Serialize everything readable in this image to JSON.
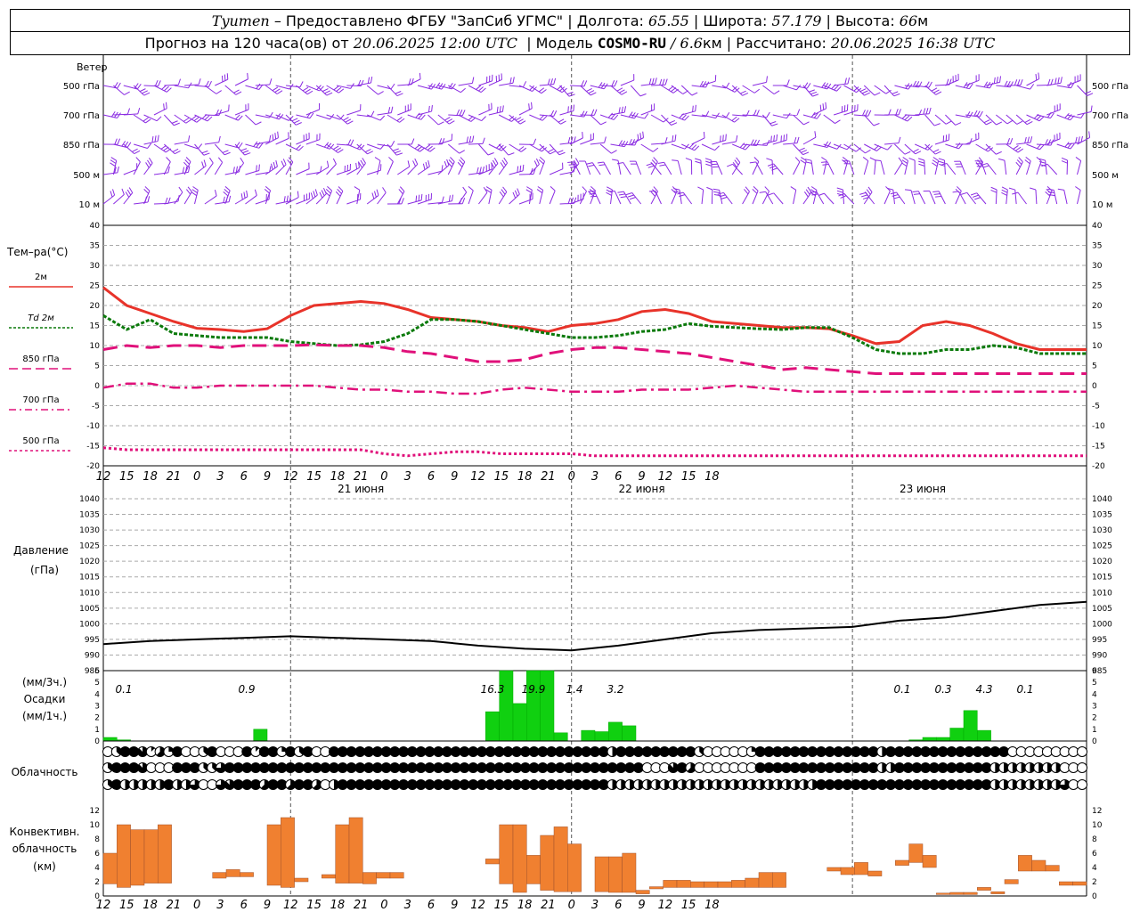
{
  "header": {
    "city": "Tyumen",
    "provider": " – Предоставлено ФГБУ \"ЗапСиб УГМС\" | Долгота: ",
    "lon": "65.55",
    "lat_label": " | Широта: ",
    "lat": "57.179",
    "alt_label": " | Высота: ",
    "alt": "66",
    "alt_unit": "м",
    "forecast_label": "Прогноз на 120 часа(ов) от ",
    "forecast_from": "20.06.2025 12:00 UTC",
    "model_label": "  | Модель ",
    "model": "COSMO-RU",
    "model_res": " / 6.6",
    "model_res_unit": "км",
    "calc_label": " | Рассчитано: ",
    "calc_time": "20.06.2025 16:38 UTC"
  },
  "labels": {
    "wind": "Ветер",
    "wind_levels": [
      "500 гПа",
      "700 гПа",
      "850 гПа",
      "500  м",
      "10  м"
    ],
    "temp_title": "Тем–ра(°C)",
    "temp_legend": [
      "2м",
      "Td  2м",
      "850 гПа",
      "700 гПа",
      "500 гПа"
    ],
    "pressure_title": "Давление",
    "pressure_unit": "(гПа)",
    "precip_unit_3h": "(мм/3ч.)",
    "precip_title": "Осадки",
    "precip_unit_1h": "(мм/1ч.)",
    "cloud_title": "Облачность",
    "conv_title1": "Конвективн.",
    "conv_title2": "облачность",
    "conv_unit": "(км)",
    "dates": [
      "21 июня",
      "22 июня",
      "23 июня"
    ]
  },
  "colors": {
    "t2m": "#e8332a",
    "td2m": "#0b7a0b",
    "t850": "#e0107a",
    "t700": "#e0107a",
    "t500": "#e0107a",
    "wind": "#8a2be2",
    "precip": "#10d010",
    "convective": "#f08030",
    "pressure": "#000000"
  },
  "chart_data": [
    {
      "type": "line",
      "name_ref": "temperature",
      "x_hours": [
        0,
        3,
        6,
        9,
        12,
        15,
        18,
        21,
        24,
        27,
        30,
        33,
        36,
        39,
        42,
        45,
        48,
        51,
        54,
        57,
        60,
        63,
        66,
        69,
        72,
        75,
        78,
        81,
        84,
        87,
        90,
        93,
        96,
        99,
        102,
        105,
        108,
        111,
        114,
        117,
        120,
        123,
        126
      ],
      "x_tick_labels": [
        "12",
        "15",
        "18",
        "21",
        "0",
        "3",
        "6",
        "9",
        "12",
        "15",
        "18",
        "21",
        "0",
        "3",
        "6",
        "9",
        "12",
        "15",
        "18",
        "21",
        "0",
        "3",
        "6",
        "9",
        "12",
        "15",
        "18"
      ],
      "ylim": [
        -20,
        40
      ],
      "y_ticks": [
        -20,
        -15,
        -10,
        -5,
        0,
        5,
        10,
        15,
        20,
        25,
        30,
        35,
        40
      ],
      "series": [
        {
          "name": "2м",
          "values": [
            24.5,
            20,
            18,
            16,
            14.3,
            14,
            13.5,
            14.2,
            17.5,
            20,
            20.5,
            21,
            20.5,
            19,
            17,
            16.5,
            16,
            15,
            14.5,
            13.5,
            15,
            15.5,
            16.5,
            18.5,
            19,
            18,
            16,
            15.5,
            15,
            14.5,
            14.5,
            14.2,
            12.5,
            10.5,
            11,
            15,
            16,
            15,
            13,
            10.5,
            9,
            9,
            9
          ]
        },
        {
          "name": "Td  2м",
          "values": [
            17.5,
            14,
            16.5,
            13,
            12.5,
            12,
            12,
            12,
            11,
            10.5,
            10,
            10.2,
            11,
            13,
            16.5,
            16.5,
            16,
            15,
            14,
            13,
            12,
            12,
            12.5,
            13.5,
            14,
            15.5,
            14.8,
            14.5,
            14.2,
            14,
            14.5,
            14.5,
            12,
            9,
            8,
            8,
            9,
            9,
            10,
            9.5,
            8,
            8,
            8
          ]
        },
        {
          "name": "850 гПа",
          "values": [
            9,
            10,
            9.5,
            10,
            10,
            9.5,
            10,
            10,
            10,
            10.2,
            10,
            10,
            9.5,
            8.5,
            8,
            7,
            6,
            6,
            6.5,
            8,
            9,
            9.5,
            9.5,
            9,
            8.5,
            8,
            7,
            6,
            5,
            4,
            4.5,
            4,
            3.5,
            3,
            3,
            3,
            3,
            3,
            3,
            3,
            3,
            3,
            3
          ]
        },
        {
          "name": "700 гПа",
          "values": [
            -0.5,
            0.5,
            0.5,
            -0.5,
            -0.5,
            0,
            0,
            0,
            0,
            0,
            -0.5,
            -1,
            -1,
            -1.5,
            -1.5,
            -2,
            -2,
            -1,
            -0.5,
            -1,
            -1.5,
            -1.5,
            -1.5,
            -1,
            -1,
            -1,
            -0.5,
            0,
            -0.5,
            -1,
            -1.5,
            -1.5,
            -1.5,
            -1.5,
            -1.5,
            -1.5,
            -1.5,
            -1.5,
            -1.5,
            -1.5,
            -1.5,
            -1.5,
            -1.5
          ]
        },
        {
          "name": "500 гПа",
          "values": [
            -15.5,
            -16,
            -16,
            -16,
            -16,
            -16,
            -16,
            -16,
            -16,
            -16,
            -16,
            -16,
            -17,
            -17.5,
            -17,
            -16.5,
            -16.5,
            -17,
            -17,
            -17,
            -17,
            -17.5,
            -17.5,
            -17.5,
            -17.5,
            -17.5,
            -17.5,
            -17.5,
            -17.5,
            -17.5,
            -17.5,
            -17.5,
            -17.5,
            -17.5,
            -17.5,
            -17.5,
            -17.5,
            -17.5,
            -17.5,
            -17.5,
            -17.5,
            -17.5,
            -17.5
          ]
        }
      ]
    },
    {
      "type": "line",
      "name_ref": "pressure",
      "ylim": [
        985,
        1040
      ],
      "y_ticks": [
        985,
        990,
        995,
        1000,
        1005,
        1010,
        1015,
        1020,
        1025,
        1030,
        1035,
        1040
      ],
      "x_hours": [
        0,
        6,
        12,
        18,
        24,
        30,
        36,
        42,
        48,
        54,
        60,
        66,
        72,
        78,
        84,
        90,
        96,
        102,
        108,
        114,
        120,
        126
      ],
      "values": [
        993.5,
        994.5,
        995,
        995.5,
        996,
        995.5,
        995,
        994.5,
        993,
        992,
        991.5,
        993,
        995,
        997,
        998,
        998.5,
        999,
        1001,
        1002,
        1004,
        1006,
        1007
      ]
    },
    {
      "type": "bar",
      "name_ref": "precipitation",
      "ylim": [
        0,
        6
      ],
      "y_ticks": [
        0,
        1,
        2,
        3,
        4,
        5,
        6
      ],
      "hourly_bars": [
        {
          "h": 0,
          "v": 0.3
        },
        {
          "h": 1,
          "v": 0.1
        },
        {
          "h": 11,
          "v": 1.0
        },
        {
          "h": 28,
          "v": 2.5
        },
        {
          "h": 29,
          "v": 6
        },
        {
          "h": 30,
          "v": 3.2
        },
        {
          "h": 31,
          "v": 6
        },
        {
          "h": 32,
          "v": 6
        },
        {
          "h": 33,
          "v": 0.7
        },
        {
          "h": 35,
          "v": 0.9
        },
        {
          "h": 36,
          "v": 0.8
        },
        {
          "h": 37,
          "v": 1.6
        },
        {
          "h": 38,
          "v": 1.3
        },
        {
          "h": 59,
          "v": 0.1
        },
        {
          "h": 60,
          "v": 0.3
        },
        {
          "h": 61,
          "v": 0.3
        },
        {
          "h": 62,
          "v": 1.1
        },
        {
          "h": 63,
          "v": 2.6
        },
        {
          "h": 64,
          "v": 0.9
        }
      ],
      "totals_3h": [
        {
          "h": 1.5,
          "label": "0.1"
        },
        {
          "h": 10.5,
          "label": "0.9"
        },
        {
          "h": 28.5,
          "label": "16.3"
        },
        {
          "h": 31.5,
          "label": "19.9"
        },
        {
          "h": 34.5,
          "label": "1.4"
        },
        {
          "h": 37.5,
          "label": "3.2"
        },
        {
          "h": 58.5,
          "label": "0.1"
        },
        {
          "h": 61.5,
          "label": "0.3"
        },
        {
          "h": 64.5,
          "label": "4.3"
        },
        {
          "h": 67.5,
          "label": "0.1"
        }
      ]
    },
    {
      "type": "bar",
      "name_ref": "convective_cloud",
      "ylim": [
        0,
        13
      ],
      "y_ticks": [
        0,
        2,
        4,
        6,
        8,
        10,
        12
      ],
      "bars": [
        {
          "h": 0,
          "lo": 1.7,
          "hi": 6
        },
        {
          "h": 1,
          "lo": 1.2,
          "hi": 10
        },
        {
          "h": 2,
          "lo": 1.5,
          "hi": 9.3
        },
        {
          "h": 3,
          "lo": 1.8,
          "hi": 9.3
        },
        {
          "h": 4,
          "lo": 1.8,
          "hi": 10
        },
        {
          "h": 8,
          "lo": 2.5,
          "hi": 3.3
        },
        {
          "h": 9,
          "lo": 2.7,
          "hi": 3.7
        },
        {
          "h": 10,
          "lo": 2.7,
          "hi": 3.3
        },
        {
          "h": 12,
          "lo": 1.5,
          "hi": 10
        },
        {
          "h": 13,
          "lo": 1.2,
          "hi": 11
        },
        {
          "h": 14,
          "lo": 2,
          "hi": 2.5
        },
        {
          "h": 16,
          "lo": 2.5,
          "hi": 3
        },
        {
          "h": 17,
          "lo": 1.8,
          "hi": 10
        },
        {
          "h": 18,
          "lo": 1.8,
          "hi": 11
        },
        {
          "h": 19,
          "lo": 1.7,
          "hi": 3.3
        },
        {
          "h": 20,
          "lo": 2.5,
          "hi": 3.3
        },
        {
          "h": 21,
          "lo": 2.5,
          "hi": 3.3
        },
        {
          "h": 28,
          "lo": 4.5,
          "hi": 5.2
        },
        {
          "h": 29,
          "lo": 1.7,
          "hi": 10
        },
        {
          "h": 30,
          "lo": 0.5,
          "hi": 10
        },
        {
          "h": 31,
          "lo": 1.7,
          "hi": 5.7
        },
        {
          "h": 32,
          "lo": 0.8,
          "hi": 8.5
        },
        {
          "h": 33,
          "lo": 0.6,
          "hi": 9.7
        },
        {
          "h": 34,
          "lo": 0.6,
          "hi": 7.3
        },
        {
          "h": 36,
          "lo": 0.6,
          "hi": 5.5
        },
        {
          "h": 37,
          "lo": 0.5,
          "hi": 5.5
        },
        {
          "h": 38,
          "lo": 0.5,
          "hi": 6
        },
        {
          "h": 39,
          "lo": 0.3,
          "hi": 0.8
        },
        {
          "h": 40,
          "lo": 1,
          "hi": 1.3
        },
        {
          "h": 41,
          "lo": 1.2,
          "hi": 2.2
        },
        {
          "h": 42,
          "lo": 1.2,
          "hi": 2.2
        },
        {
          "h": 43,
          "lo": 1.2,
          "hi": 2
        },
        {
          "h": 44,
          "lo": 1.2,
          "hi": 2
        },
        {
          "h": 45,
          "lo": 1.2,
          "hi": 2
        },
        {
          "h": 46,
          "lo": 1.2,
          "hi": 2.2
        },
        {
          "h": 47,
          "lo": 1.2,
          "hi": 2.5
        },
        {
          "h": 48,
          "lo": 1.2,
          "hi": 3.3
        },
        {
          "h": 49,
          "lo": 1.2,
          "hi": 3.3
        },
        {
          "h": 53,
          "lo": 3.5,
          "hi": 4
        },
        {
          "h": 54,
          "lo": 3,
          "hi": 4
        },
        {
          "h": 55,
          "lo": 3,
          "hi": 4.7
        },
        {
          "h": 56,
          "lo": 2.8,
          "hi": 3.5
        },
        {
          "h": 58,
          "lo": 4.3,
          "hi": 5
        },
        {
          "h": 59,
          "lo": 4.7,
          "hi": 7.3
        },
        {
          "h": 60,
          "lo": 4,
          "hi": 5.7
        },
        {
          "h": 61,
          "lo": 0.2,
          "hi": 0.4
        },
        {
          "h": 62,
          "lo": 0.2,
          "hi": 0.5
        },
        {
          "h": 63,
          "lo": 0.2,
          "hi": 0.5
        },
        {
          "h": 64,
          "lo": 0.8,
          "hi": 1.2
        },
        {
          "h": 65,
          "lo": 0.3,
          "hi": 0.6
        },
        {
          "h": 66,
          "lo": 1.7,
          "hi": 2.3
        },
        {
          "h": 67,
          "lo": 3.5,
          "hi": 5.7
        },
        {
          "h": 68,
          "lo": 3.5,
          "hi": 5
        },
        {
          "h": 69,
          "lo": 3.5,
          "hi": 4.3
        },
        {
          "h": 70,
          "lo": 1.5,
          "hi": 2
        },
        {
          "h": 71,
          "lo": 1.5,
          "hi": 2
        }
      ]
    },
    {
      "type": "table",
      "name_ref": "cloud_cover",
      "rows": [
        "high",
        "middle",
        "low"
      ],
      "cover_0_to_8": [
        [
          0,
          3,
          8,
          8,
          7,
          1,
          5,
          2,
          8,
          0,
          0,
          3,
          8,
          0,
          0,
          0,
          8,
          1,
          8,
          8,
          2,
          8,
          3,
          8,
          0,
          0,
          8,
          8,
          8,
          8,
          8,
          8,
          8,
          8,
          8,
          8,
          8,
          8,
          8,
          8,
          8,
          8,
          8,
          8,
          8,
          8,
          8,
          8,
          8,
          8,
          8,
          8,
          8,
          8,
          8,
          8,
          8,
          8,
          4,
          8,
          8,
          8,
          8,
          8,
          8,
          8,
          8,
          8,
          3,
          0,
          0,
          0,
          0,
          0,
          2,
          8,
          8,
          8,
          8,
          8,
          8,
          8,
          8,
          8,
          8,
          8,
          8,
          8,
          8,
          4,
          8,
          8,
          8,
          8,
          8,
          8,
          8,
          8,
          8,
          8,
          8,
          8,
          8,
          8,
          0,
          0,
          0,
          0,
          0,
          0,
          0,
          0,
          0
        ],
        [
          3,
          8,
          8,
          8,
          7,
          0,
          0,
          0,
          8,
          8,
          8,
          3,
          3,
          6,
          8,
          8,
          8,
          8,
          8,
          8,
          8,
          8,
          8,
          8,
          8,
          8,
          8,
          8,
          8,
          8,
          8,
          8,
          8,
          8,
          8,
          8,
          8,
          8,
          8,
          8,
          8,
          8,
          8,
          8,
          8,
          8,
          8,
          8,
          8,
          8,
          8,
          8,
          8,
          8,
          8,
          8,
          8,
          8,
          8,
          8,
          8,
          8,
          0,
          0,
          0,
          7,
          8,
          5,
          0,
          0,
          0,
          0,
          0,
          0,
          0,
          8,
          8,
          8,
          8,
          8,
          8,
          8,
          8,
          8,
          8,
          8,
          8,
          8,
          8,
          4,
          4,
          8,
          8,
          8,
          8,
          8,
          8,
          8,
          8,
          8,
          8,
          8,
          4,
          4,
          4,
          4,
          4,
          4,
          4,
          4,
          0,
          0,
          0
        ],
        [
          3,
          8,
          4,
          4,
          4,
          4,
          4,
          8,
          4,
          4,
          6,
          0,
          0,
          6,
          7,
          8,
          8,
          8,
          5,
          8,
          8,
          5,
          8,
          8,
          5,
          0,
          4,
          8,
          8,
          8,
          8,
          8,
          8,
          8,
          8,
          8,
          8,
          8,
          8,
          8,
          8,
          8,
          8,
          8,
          8,
          8,
          8,
          8,
          8,
          8,
          8,
          8,
          8,
          8,
          8,
          8,
          8,
          8,
          4,
          4,
          4,
          4,
          4,
          4,
          4,
          4,
          4,
          4,
          4,
          4,
          4,
          4,
          4,
          4,
          4,
          4,
          4,
          4,
          4,
          4,
          4,
          4,
          8,
          8,
          8,
          8,
          8,
          8,
          8,
          8,
          8,
          8,
          8,
          8,
          8,
          8,
          8,
          8,
          8,
          8,
          8,
          8,
          4,
          4,
          4,
          4,
          4,
          4,
          4,
          4,
          6,
          0,
          0
        ]
      ]
    },
    {
      "type": "scatter",
      "name_ref": "wind_barbs",
      "levels": [
        "500 гПа",
        "700 гПа",
        "850 гПа",
        "500  м",
        "10  м"
      ],
      "note_units": "direction deg / speed m/s, sampled hourly"
    }
  ]
}
